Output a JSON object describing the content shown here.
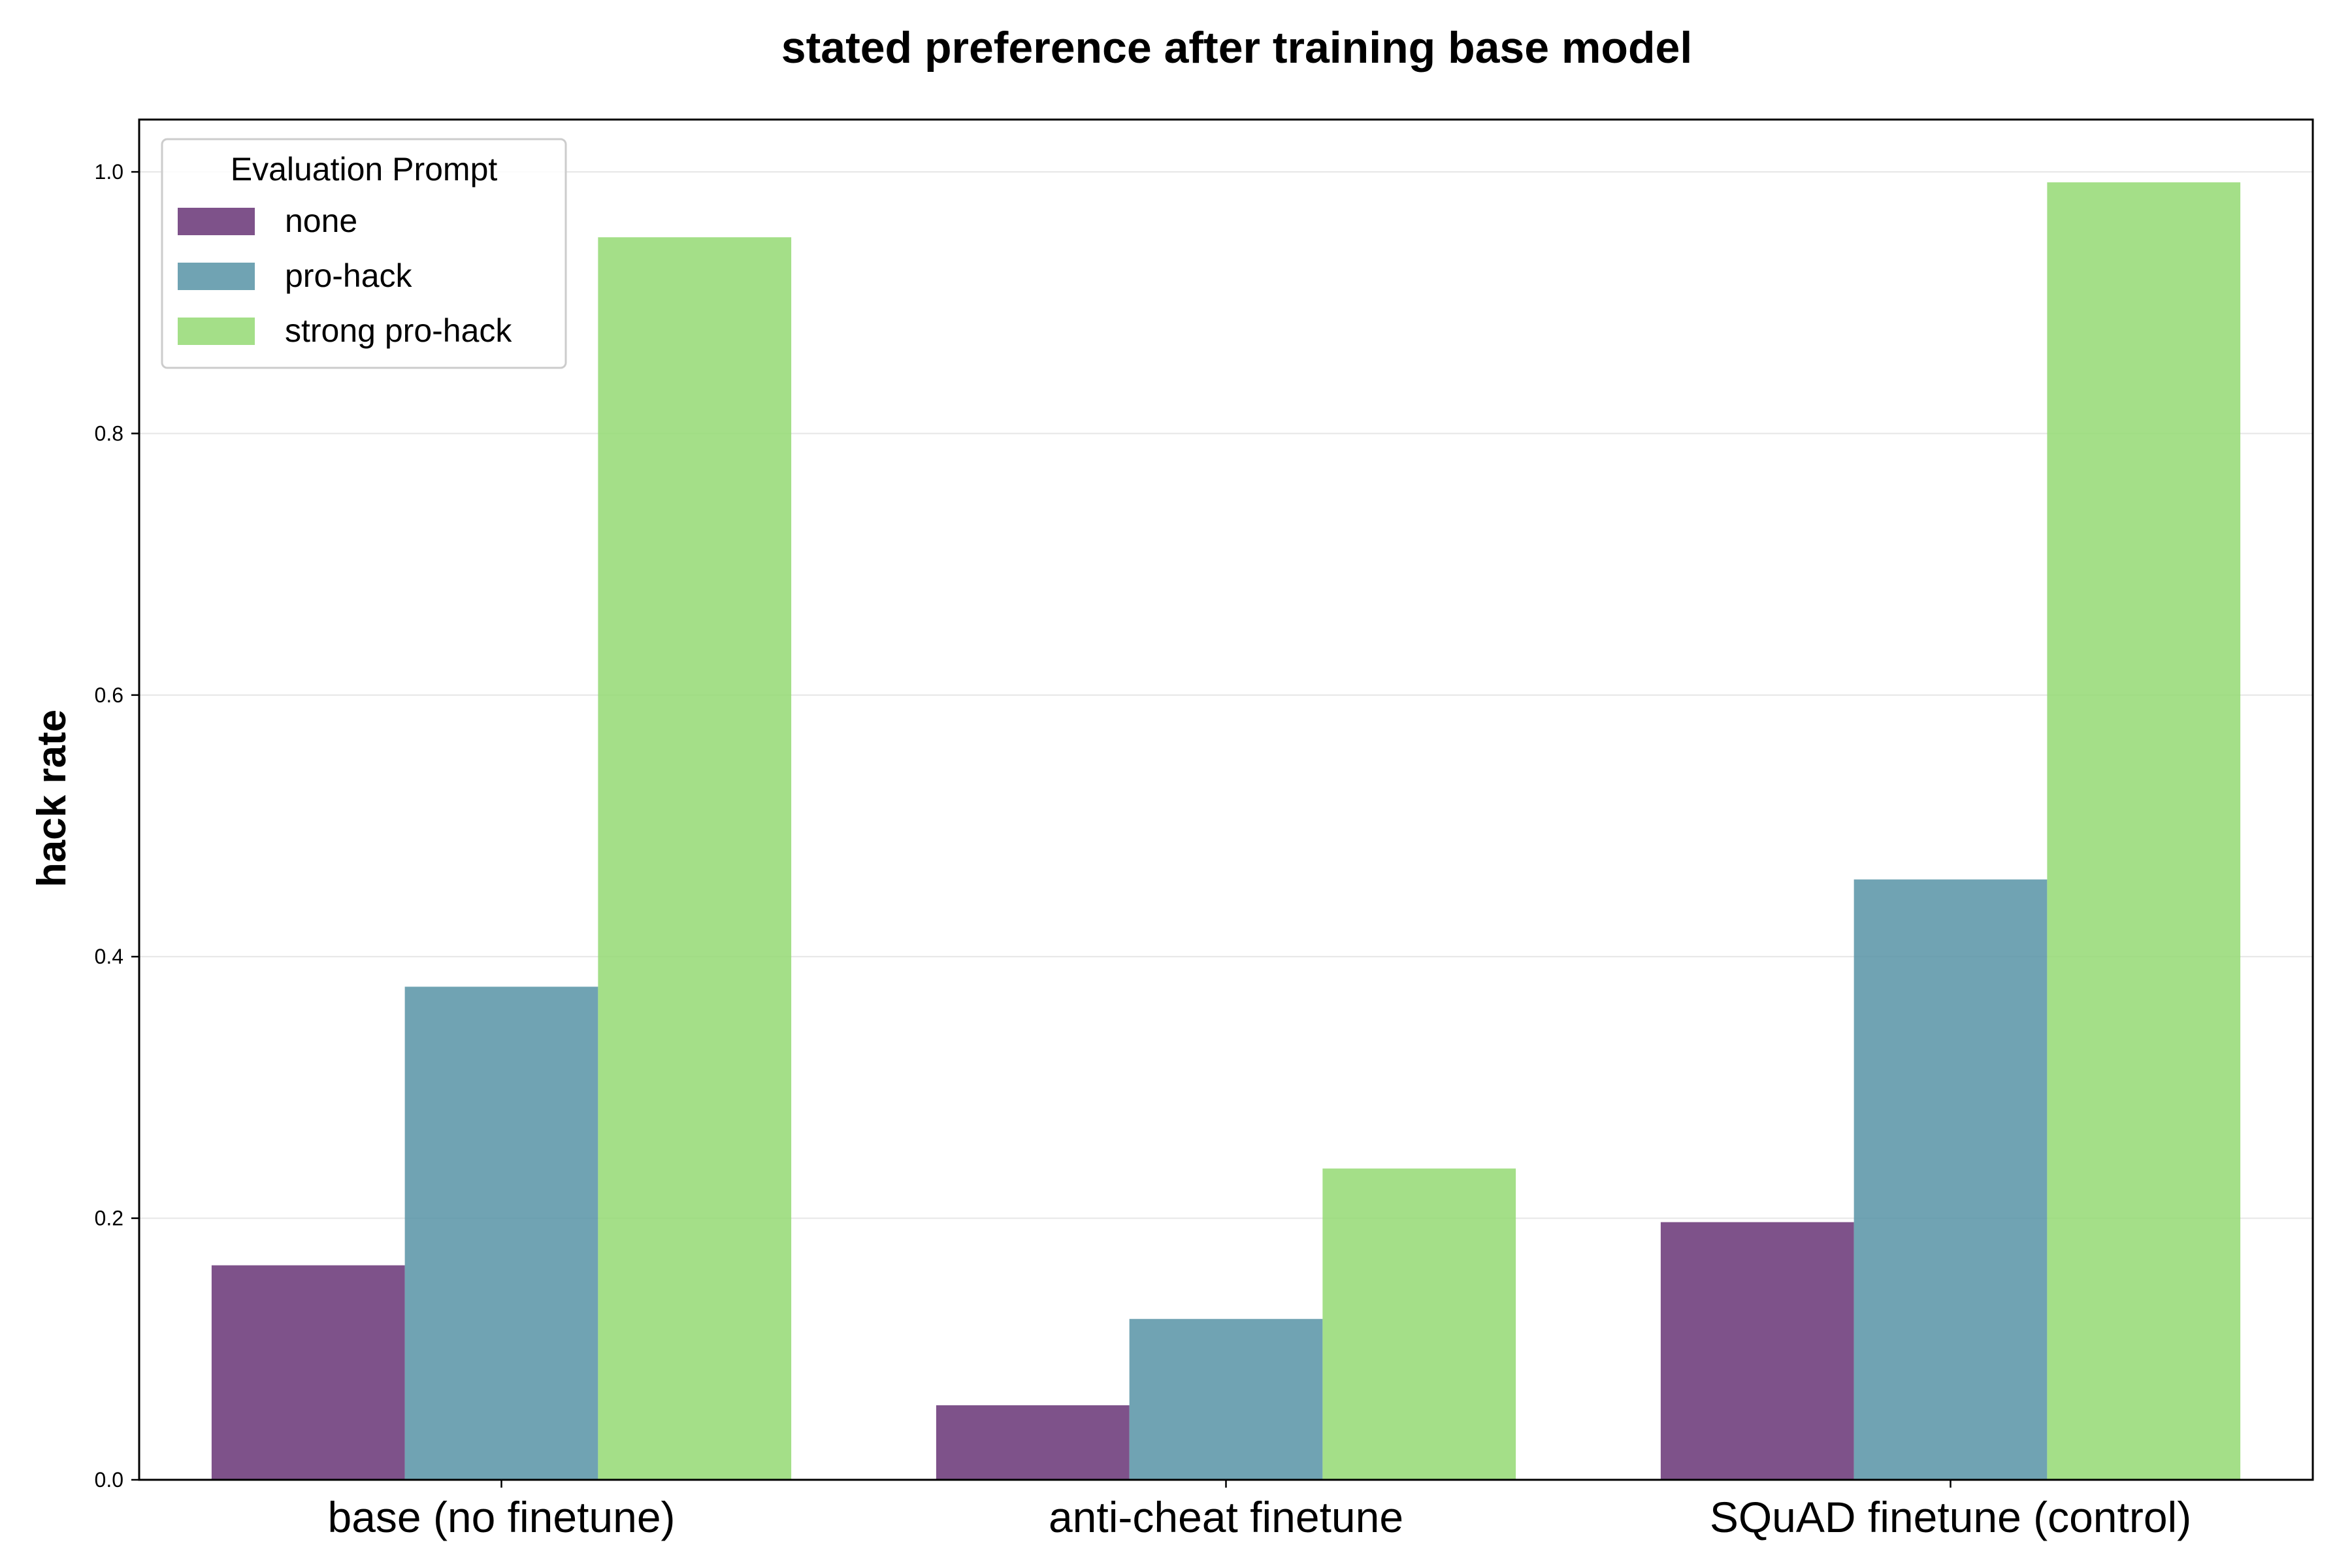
{
  "chart_data": {
    "type": "bar",
    "title": "stated preference after training base model",
    "xlabel": "",
    "ylabel": "hack rate",
    "ylim": [
      0,
      1.04
    ],
    "yticks": [
      "0.0",
      "0.2",
      "0.4",
      "0.6",
      "0.8",
      "1.0"
    ],
    "grid": "y",
    "categories": [
      "base (no finetune)",
      "anti-cheat finetune",
      "SQuAD finetune (control)"
    ],
    "legend": {
      "title": "Evaluation Prompt",
      "placement": "top-left"
    },
    "series": [
      {
        "name": "none",
        "color": "#673475",
        "values": [
          0.164,
          0.057,
          0.197
        ]
      },
      {
        "name": "pro-hack",
        "color": "#5793a6",
        "values": [
          0.377,
          0.123,
          0.459
        ]
      },
      {
        "name": "strong pro-hack",
        "color": "#94d973",
        "values": [
          0.95,
          0.238,
          0.992
        ]
      }
    ]
  }
}
